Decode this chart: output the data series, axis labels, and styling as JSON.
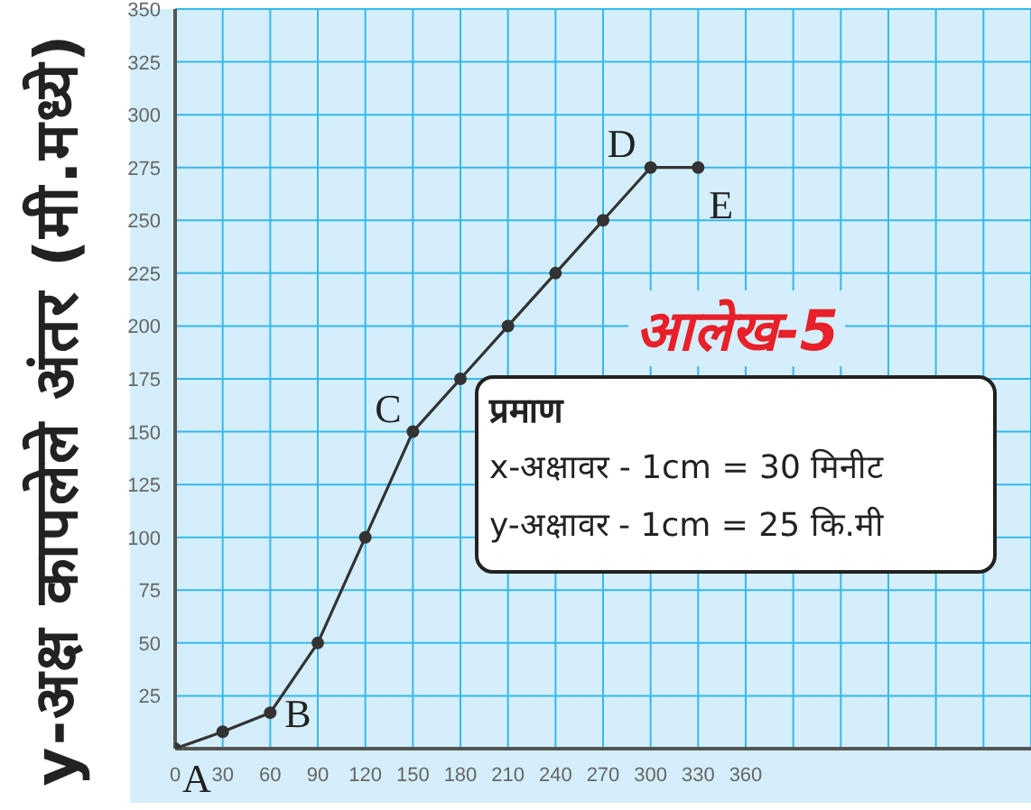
{
  "chart_data": {
    "type": "line",
    "title": "आलेख-5",
    "ylabel": "y-अक्ष कापलेले अंतर (मी.मध्ये)",
    "x": [
      0,
      30,
      60,
      90,
      120,
      150,
      180,
      210,
      240,
      270,
      300,
      330
    ],
    "series": [
      {
        "color": "#333333",
        "values": [
          0,
          8,
          17,
          50,
          100,
          150,
          175,
          200,
          225,
          250,
          275,
          275
        ]
      }
    ],
    "xlim": [
      0,
      540
    ],
    "xticks": [
      0,
      30,
      60,
      90,
      120,
      150,
      180,
      210,
      240,
      270,
      300,
      330,
      360,
      {
        "value": 390,
        "label": null
      },
      {
        "value": 420,
        "label": null
      },
      {
        "value": 450,
        "label": null
      },
      {
        "value": 480,
        "label": null
      },
      {
        "value": 510,
        "label": null
      },
      {
        "value": 540,
        "label": null
      }
    ],
    "ylim": [
      0,
      350
    ],
    "yticks": [
      25,
      50,
      75,
      100,
      125,
      150,
      175,
      200,
      225,
      250,
      275,
      300,
      325,
      350
    ],
    "grid": true,
    "marker": "circle",
    "line_style": "solid",
    "annotations": [
      {
        "text": "A",
        "x": 0,
        "y": 0
      },
      {
        "text": "B",
        "x": 60,
        "y": 17
      },
      {
        "text": "C",
        "x": 150,
        "y": 150
      },
      {
        "text": "D",
        "x": 300,
        "y": 275
      },
      {
        "text": "E",
        "x": 330,
        "y": 275
      },
      "प्रमाण",
      "x-अक्षावर - 1cm = 30 मिनीट",
      "y-अक्षावर - 1cm = 25 कि.मी"
    ]
  }
}
